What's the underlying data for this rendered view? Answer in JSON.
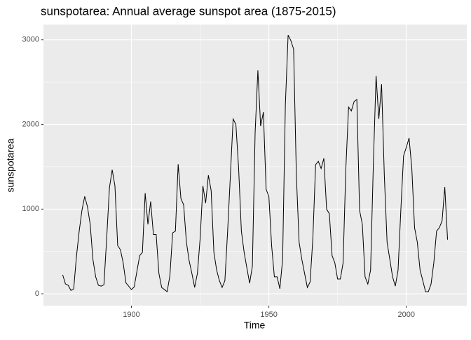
{
  "chart_data": {
    "type": "line",
    "title": "sunspotarea: Annual average sunspot area (1875-2015)",
    "x_label": "Time",
    "y_label": "sunspotarea",
    "x": [
      1875,
      1876,
      1877,
      1878,
      1879,
      1880,
      1881,
      1882,
      1883,
      1884,
      1885,
      1886,
      1887,
      1888,
      1889,
      1890,
      1891,
      1892,
      1893,
      1894,
      1895,
      1896,
      1897,
      1898,
      1899,
      1900,
      1901,
      1902,
      1903,
      1904,
      1905,
      1906,
      1907,
      1908,
      1909,
      1910,
      1911,
      1912,
      1913,
      1914,
      1915,
      1916,
      1917,
      1918,
      1919,
      1920,
      1921,
      1922,
      1923,
      1924,
      1925,
      1926,
      1927,
      1928,
      1929,
      1930,
      1931,
      1932,
      1933,
      1934,
      1935,
      1936,
      1937,
      1938,
      1939,
      1940,
      1941,
      1942,
      1943,
      1944,
      1945,
      1946,
      1947,
      1948,
      1949,
      1950,
      1951,
      1952,
      1953,
      1954,
      1955,
      1956,
      1957,
      1958,
      1959,
      1960,
      1961,
      1962,
      1963,
      1964,
      1965,
      1966,
      1967,
      1968,
      1969,
      1970,
      1971,
      1972,
      1973,
      1974,
      1975,
      1976,
      1977,
      1978,
      1979,
      1980,
      1981,
      1982,
      1983,
      1984,
      1985,
      1986,
      1987,
      1988,
      1989,
      1990,
      1991,
      1992,
      1993,
      1994,
      1995,
      1996,
      1997,
      1998,
      1999,
      2000,
      2001,
      2002,
      2003,
      2004,
      2005,
      2006,
      2007,
      2008,
      2009,
      2010,
      2011,
      2012,
      2013,
      2014,
      2015
    ],
    "series": [
      {
        "name": "sunspotarea",
        "color": "#000000",
        "values": [
          224,
          116,
          100,
          40,
          58,
          440,
          740,
          985,
          1150,
          1030,
          820,
          405,
          200,
          100,
          90,
          108,
          655,
          1250,
          1465,
          1275,
          570,
          520,
          365,
          130,
          90,
          50,
          80,
          265,
          450,
          490,
          1190,
          820,
          1090,
          700,
          700,
          240,
          75,
          50,
          25,
          215,
          720,
          740,
          1530,
          1125,
          1050,
          610,
          390,
          240,
          75,
          240,
          655,
          1275,
          1070,
          1400,
          1220,
          490,
          280,
          155,
          75,
          155,
          740,
          1400,
          2065,
          2000,
          1480,
          740,
          490,
          305,
          125,
          325,
          1900,
          2640,
          1980,
          2145,
          1235,
          1150,
          570,
          200,
          200,
          60,
          405,
          2230,
          3055,
          2990,
          2890,
          1400,
          610,
          405,
          240,
          75,
          140,
          655,
          1525,
          1565,
          1480,
          1600,
          1000,
          945,
          450,
          365,
          175,
          175,
          365,
          1480,
          2205,
          2160,
          2270,
          2295,
          985,
          820,
          200,
          115,
          280,
          1525,
          2575,
          2065,
          2475,
          1400,
          610,
          405,
          200,
          90,
          280,
          985,
          1630,
          1730,
          1840,
          1480,
          780,
          610,
          280,
          155,
          25,
          25,
          115,
          365,
          740,
          780,
          860,
          1260,
          640
        ]
      }
    ],
    "xlim": [
      1868,
      2022
    ],
    "ylim": [
      -140,
      3180
    ],
    "xticks": [
      1900,
      1950,
      2000
    ],
    "yticks": [
      0,
      1000,
      2000,
      3000
    ],
    "x_minor_grid": [
      1925,
      1975
    ],
    "y_minor_grid": [
      500,
      1500,
      2500
    ],
    "grid": true,
    "panel_color": "#ebebeb"
  }
}
